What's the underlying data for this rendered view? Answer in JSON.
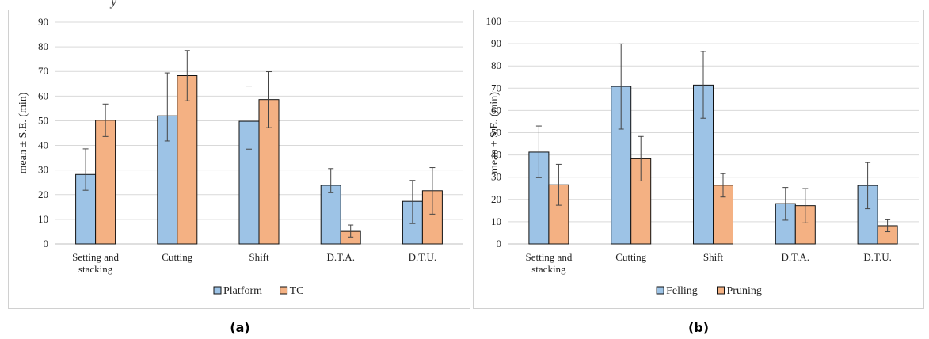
{
  "page": {
    "top_text": "y",
    "caption_a": "(a)",
    "caption_b": "(b)"
  },
  "chart_data": [
    {
      "type": "bar",
      "panel": "a",
      "ylabel": "mean ± S.E. (min)",
      "ylim": [
        0,
        90
      ],
      "ystep": 10,
      "grid": true,
      "legend_position": "bottom",
      "categories": [
        [
          "Setting and",
          "stacking"
        ],
        [
          "Cutting"
        ],
        [
          "Shift"
        ],
        [
          "D.T.A."
        ],
        [
          "D.T.U."
        ]
      ],
      "series": [
        {
          "name": "Platform",
          "color": "#9dc3e6",
          "values": [
            28.2,
            52.0,
            49.8,
            23.8,
            17.3
          ],
          "err_low": [
            21.8,
            41.8,
            38.5,
            20.8,
            8.3
          ],
          "err_high": [
            38.6,
            69.4,
            64.1,
            30.6,
            25.8
          ]
        },
        {
          "name": "TC",
          "color": "#f4b183",
          "values": [
            50.2,
            68.3,
            58.6,
            5.1,
            21.6
          ],
          "err_low": [
            43.6,
            58.1,
            47.2,
            2.8,
            12.1
          ],
          "err_high": [
            56.8,
            78.5,
            69.9,
            7.7,
            31.0
          ]
        }
      ]
    },
    {
      "type": "bar",
      "panel": "b",
      "ylabel": "mean ± S.E. (min)",
      "ylim": [
        0,
        100
      ],
      "ystep": 10,
      "grid": true,
      "legend_position": "bottom",
      "categories": [
        [
          "Setting and",
          "stacking"
        ],
        [
          "Cutting"
        ],
        [
          "Shift"
        ],
        [
          "D.T.A."
        ],
        [
          "D.T.U."
        ]
      ],
      "series": [
        {
          "name": "Felling",
          "color": "#9dc3e6",
          "values": [
            41.3,
            70.8,
            71.4,
            18.1,
            26.3
          ],
          "err_low": [
            29.8,
            51.6,
            56.5,
            10.7,
            15.8
          ],
          "err_high": [
            53.0,
            89.9,
            86.5,
            25.4,
            36.6
          ]
        },
        {
          "name": "Pruning",
          "color": "#f4b183",
          "values": [
            26.6,
            38.3,
            26.4,
            17.2,
            8.2
          ],
          "err_low": [
            17.4,
            28.3,
            21.1,
            9.5,
            5.5
          ],
          "err_high": [
            35.8,
            48.3,
            31.6,
            24.9,
            10.9
          ]
        }
      ]
    }
  ]
}
